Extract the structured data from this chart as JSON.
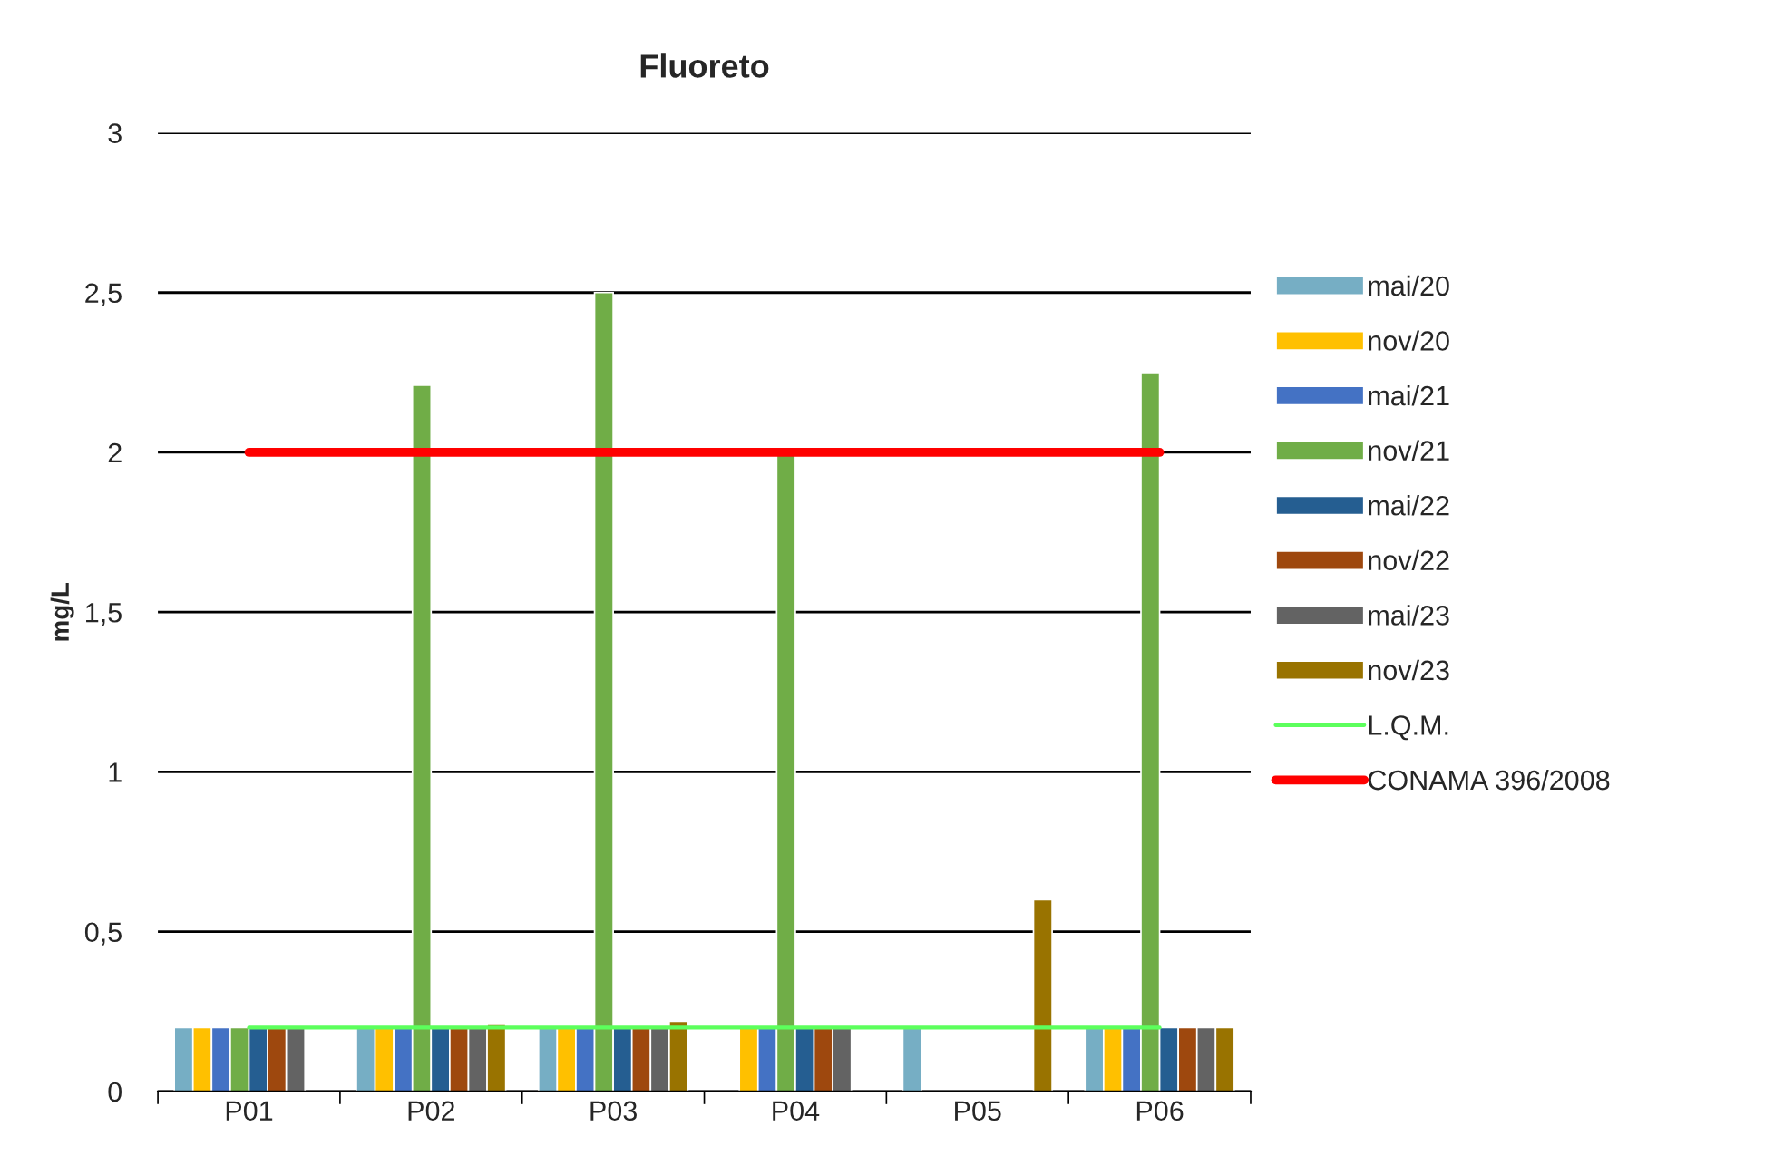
{
  "chart_data": {
    "type": "bar",
    "title": "Fluoreto",
    "ylabel": "mg/L",
    "categories": [
      "P01",
      "P02",
      "P03",
      "P04",
      "P05",
      "P06"
    ],
    "series": [
      {
        "name": "mai/20",
        "color": "#76aec4",
        "values": [
          0.2,
          0.2,
          0.2,
          null,
          0.2,
          0.2
        ]
      },
      {
        "name": "nov/20",
        "color": "#ffc000",
        "values": [
          0.2,
          0.2,
          0.2,
          0.2,
          null,
          0.2
        ]
      },
      {
        "name": "mai/21",
        "color": "#4472c4",
        "values": [
          0.2,
          0.2,
          0.2,
          0.2,
          null,
          0.2
        ]
      },
      {
        "name": "nov/21",
        "color": "#70ad47",
        "values": [
          0.2,
          2.21,
          2.5,
          2.0,
          null,
          2.25
        ]
      },
      {
        "name": "mai/22",
        "color": "#255e91",
        "values": [
          0.2,
          0.2,
          0.2,
          0.2,
          null,
          0.2
        ]
      },
      {
        "name": "nov/22",
        "color": "#9e480e",
        "values": [
          0.2,
          0.2,
          0.2,
          0.2,
          null,
          0.2
        ]
      },
      {
        "name": "mai/23",
        "color": "#636363",
        "values": [
          0.2,
          0.2,
          0.2,
          0.2,
          null,
          0.2
        ]
      },
      {
        "name": "nov/23",
        "color": "#997300",
        "values": [
          null,
          0.21,
          0.22,
          null,
          0.6,
          0.2
        ]
      },
      {
        "name": "L.Q.M.",
        "type": "line",
        "color": "#5cff5c",
        "values": [
          0.2,
          0.2,
          0.2,
          0.2,
          0.2,
          0.2
        ]
      },
      {
        "name": "CONAMA 396/2008",
        "type": "line",
        "color": "#ff0000",
        "values": [
          2,
          2,
          2,
          2,
          2,
          2
        ]
      }
    ],
    "ylim": [
      0,
      3
    ],
    "yticks": [
      {
        "value": 0,
        "label": "0"
      },
      {
        "value": 0.5,
        "label": "0,5"
      },
      {
        "value": 1,
        "label": "1"
      },
      {
        "value": 1.5,
        "label": "1,5"
      },
      {
        "value": 2,
        "label": "2"
      },
      {
        "value": 2.5,
        "label": "2,5"
      },
      {
        "value": 3,
        "label": "3"
      }
    ],
    "grid": "y",
    "legend": "right"
  }
}
